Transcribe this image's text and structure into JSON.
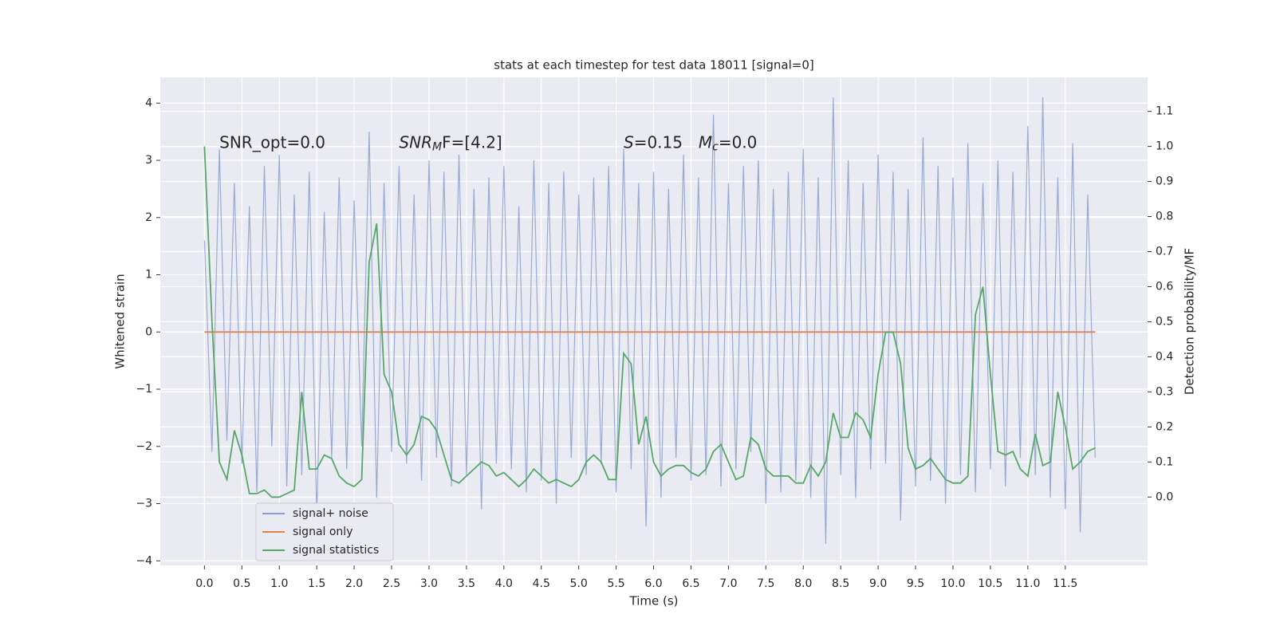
{
  "chart_data": {
    "type": "line",
    "title": "stats at each timestep for test data 18011 [signal=0]",
    "xlabel": "Time (s)",
    "ylabel": "Whitened strain",
    "y2label": "Detection probability/MF",
    "annotations": [
      {
        "text": "SNR_opt=0.0",
        "x": 0.2,
        "y": 3.3
      },
      {
        "text": "SNR",
        "sub": "M",
        "rest": "F=[4.2]",
        "x": 2.6,
        "y": 3.3
      },
      {
        "text": "S",
        "rest": "=0.15",
        "x": 5.6,
        "y": 3.3
      },
      {
        "text": "M",
        "sub": "c",
        "rest": "=0.0",
        "x": 6.6,
        "y": 3.3
      }
    ],
    "x": [
      0.0,
      0.1,
      0.2,
      0.3,
      0.4,
      0.5,
      0.6,
      0.7,
      0.8,
      0.9,
      1.0,
      1.1,
      1.2,
      1.3,
      1.4,
      1.5,
      1.6,
      1.7,
      1.8,
      1.9,
      2.0,
      2.1,
      2.2,
      2.3,
      2.4,
      2.5,
      2.6,
      2.7,
      2.8,
      2.9,
      3.0,
      3.1,
      3.2,
      3.3,
      3.4,
      3.5,
      3.6,
      3.7,
      3.8,
      3.9,
      4.0,
      4.1,
      4.2,
      4.3,
      4.4,
      4.5,
      4.6,
      4.7,
      4.8,
      4.9,
      5.0,
      5.1,
      5.2,
      5.3,
      5.4,
      5.5,
      5.6,
      5.7,
      5.8,
      5.9,
      6.0,
      6.1,
      6.2,
      6.3,
      6.4,
      6.5,
      6.6,
      6.7,
      6.8,
      6.9,
      7.0,
      7.1,
      7.2,
      7.3,
      7.4,
      7.5,
      7.6,
      7.7,
      7.8,
      7.9,
      8.0,
      8.1,
      8.2,
      8.3,
      8.4,
      8.5,
      8.6,
      8.7,
      8.8,
      8.9,
      9.0,
      9.1,
      9.2,
      9.3,
      9.4,
      9.5,
      9.6,
      9.7,
      9.8,
      9.9,
      10.0,
      10.1,
      10.2,
      10.3,
      10.4,
      10.5,
      10.6,
      10.7,
      10.8,
      10.9,
      11.0,
      11.1,
      11.2,
      11.3,
      11.4,
      11.5,
      11.6,
      11.7,
      11.8,
      11.9
    ],
    "series": [
      {
        "name": "signal+ noise",
        "color": "#8c9fcc",
        "values": [
          1.6,
          -2.1,
          3.2,
          -1.9,
          2.6,
          -2.3,
          2.2,
          -2.8,
          2.9,
          -2.0,
          3.1,
          -2.7,
          2.4,
          -2.5,
          2.8,
          -3.2,
          2.1,
          -2.2,
          2.7,
          -2.4,
          2.3,
          -2.0,
          3.5,
          -2.9,
          2.6,
          -2.1,
          2.9,
          -2.3,
          2.4,
          -2.6,
          3.0,
          -2.2,
          2.8,
          -2.7,
          3.1,
          -2.5,
          2.5,
          -3.1,
          2.7,
          -2.3,
          2.9,
          -2.4,
          2.2,
          -2.8,
          3.0,
          -2.6,
          2.6,
          -3.0,
          2.8,
          -2.2,
          2.4,
          -2.5,
          2.7,
          -2.3,
          2.9,
          -2.8,
          3.2,
          -2.4,
          2.6,
          -3.4,
          2.8,
          -2.9,
          2.5,
          -2.2,
          3.1,
          -2.6,
          2.7,
          -2.5,
          3.8,
          -2.7,
          2.6,
          -2.4,
          2.9,
          -2.1,
          3.0,
          -3.0,
          2.5,
          -2.8,
          2.8,
          -2.6,
          3.2,
          -2.9,
          2.7,
          -3.7,
          4.1,
          -2.5,
          3.0,
          -2.9,
          2.6,
          -2.4,
          3.1,
          -2.3,
          2.8,
          -3.3,
          2.5,
          -2.7,
          3.4,
          -2.6,
          2.9,
          -3.0,
          2.7,
          -2.5,
          3.3,
          -2.8,
          2.6,
          -2.4,
          3.0,
          -2.7,
          2.8,
          -2.2,
          3.6,
          -2.5,
          4.1,
          -2.9,
          2.7,
          -3.1,
          3.3,
          -3.5,
          2.4,
          -2.2
        ]
      },
      {
        "name": "signal only",
        "color": "#dd8452",
        "values": [
          0,
          0,
          0,
          0,
          0,
          0,
          0,
          0,
          0,
          0,
          0,
          0,
          0,
          0,
          0,
          0,
          0,
          0,
          0,
          0,
          0,
          0,
          0,
          0,
          0,
          0,
          0,
          0,
          0,
          0,
          0,
          0,
          0,
          0,
          0,
          0,
          0,
          0,
          0,
          0,
          0,
          0,
          0,
          0,
          0,
          0,
          0,
          0,
          0,
          0,
          0,
          0,
          0,
          0,
          0,
          0,
          0,
          0,
          0,
          0,
          0,
          0,
          0,
          0,
          0,
          0,
          0,
          0,
          0,
          0,
          0,
          0,
          0,
          0,
          0,
          0,
          0,
          0,
          0,
          0,
          0,
          0,
          0,
          0,
          0,
          0,
          0,
          0,
          0,
          0,
          0,
          0,
          0,
          0,
          0,
          0,
          0,
          0,
          0,
          0,
          0,
          0,
          0,
          0,
          0,
          0,
          0,
          0,
          0,
          0,
          0,
          0,
          0,
          0,
          0,
          0,
          0,
          0,
          0,
          0
        ]
      },
      {
        "name": "signal statistics",
        "color": "#55a868",
        "axis": "y2",
        "values": [
          1.0,
          0.5,
          0.1,
          0.05,
          0.19,
          0.12,
          0.01,
          0.01,
          0.02,
          0.0,
          0.0,
          0.01,
          0.02,
          0.3,
          0.08,
          0.08,
          0.12,
          0.11,
          0.06,
          0.04,
          0.03,
          0.05,
          0.67,
          0.78,
          0.35,
          0.3,
          0.15,
          0.12,
          0.15,
          0.23,
          0.22,
          0.19,
          0.12,
          0.05,
          0.04,
          0.06,
          0.08,
          0.1,
          0.09,
          0.06,
          0.07,
          0.05,
          0.03,
          0.05,
          0.08,
          0.06,
          0.04,
          0.05,
          0.04,
          0.03,
          0.05,
          0.1,
          0.12,
          0.1,
          0.05,
          0.05,
          0.41,
          0.38,
          0.15,
          0.23,
          0.1,
          0.06,
          0.08,
          0.09,
          0.09,
          0.07,
          0.06,
          0.08,
          0.13,
          0.15,
          0.1,
          0.05,
          0.06,
          0.17,
          0.15,
          0.08,
          0.06,
          0.06,
          0.06,
          0.04,
          0.04,
          0.09,
          0.06,
          0.1,
          0.24,
          0.17,
          0.17,
          0.24,
          0.22,
          0.17,
          0.35,
          0.47,
          0.47,
          0.38,
          0.14,
          0.08,
          0.09,
          0.11,
          0.08,
          0.05,
          0.04,
          0.04,
          0.06,
          0.52,
          0.6,
          0.35,
          0.13,
          0.12,
          0.13,
          0.08,
          0.06,
          0.18,
          0.09,
          0.1,
          0.3,
          0.2,
          0.08,
          0.1,
          0.13,
          0.14
        ]
      }
    ],
    "xlim": [
      -0.59,
      12.6
    ],
    "ylim": [
      -4.08,
      4.45
    ],
    "y2lim": [
      -0.195,
      1.197
    ],
    "xticks": [
      {
        "value": 0,
        "label": "0.0"
      },
      {
        "value": 0.5,
        "label": "0.5"
      },
      {
        "value": 1,
        "label": "1.0"
      },
      {
        "value": 1.5,
        "label": "1.5"
      },
      {
        "value": 2,
        "label": "2.0"
      },
      {
        "value": 2.5,
        "label": "2.5"
      },
      {
        "value": 3,
        "label": "3.0"
      },
      {
        "value": 3.5,
        "label": "3.5"
      },
      {
        "value": 4,
        "label": "4.0"
      },
      {
        "value": 4.5,
        "label": "4.5"
      },
      {
        "value": 5,
        "label": "5.0"
      },
      {
        "value": 5.5,
        "label": "5.5"
      },
      {
        "value": 6,
        "label": "6.0"
      },
      {
        "value": 6.5,
        "label": "6.5"
      },
      {
        "value": 7,
        "label": "7.0"
      },
      {
        "value": 7.5,
        "label": "7.5"
      },
      {
        "value": 8,
        "label": "8.0"
      },
      {
        "value": 8.5,
        "label": "8.5"
      },
      {
        "value": 9,
        "label": "9.0"
      },
      {
        "value": 9.5,
        "label": "9.5"
      },
      {
        "value": 10,
        "label": "10.0"
      },
      {
        "value": 10.5,
        "label": "10.5"
      },
      {
        "value": 11,
        "label": "11.0"
      },
      {
        "value": 11.5,
        "label": "11.5"
      }
    ],
    "yticks": [
      {
        "value": -4,
        "label": "−4"
      },
      {
        "value": -3,
        "label": "−3"
      },
      {
        "value": -2,
        "label": "−2"
      },
      {
        "value": -1,
        "label": "−1"
      },
      0,
      1,
      2,
      3,
      4
    ],
    "y2ticks": [
      {
        "value": 0,
        "label": "0.0"
      },
      {
        "value": 0.1,
        "label": "0.1"
      },
      {
        "value": 0.2,
        "label": "0.2"
      },
      {
        "value": 0.3,
        "label": "0.3"
      },
      {
        "value": 0.4,
        "label": "0.4"
      },
      {
        "value": 0.5,
        "label": "0.5"
      },
      {
        "value": 0.6,
        "label": "0.6"
      },
      {
        "value": 0.7,
        "label": "0.7"
      },
      {
        "value": 0.8,
        "label": "0.8"
      },
      {
        "value": 0.9,
        "label": "0.9"
      },
      {
        "value": 1,
        "label": "1.0"
      },
      {
        "value": 1.1,
        "label": "1.1"
      }
    ],
    "grid": true,
    "legend": "lower left",
    "background": "#eaeaf2"
  }
}
